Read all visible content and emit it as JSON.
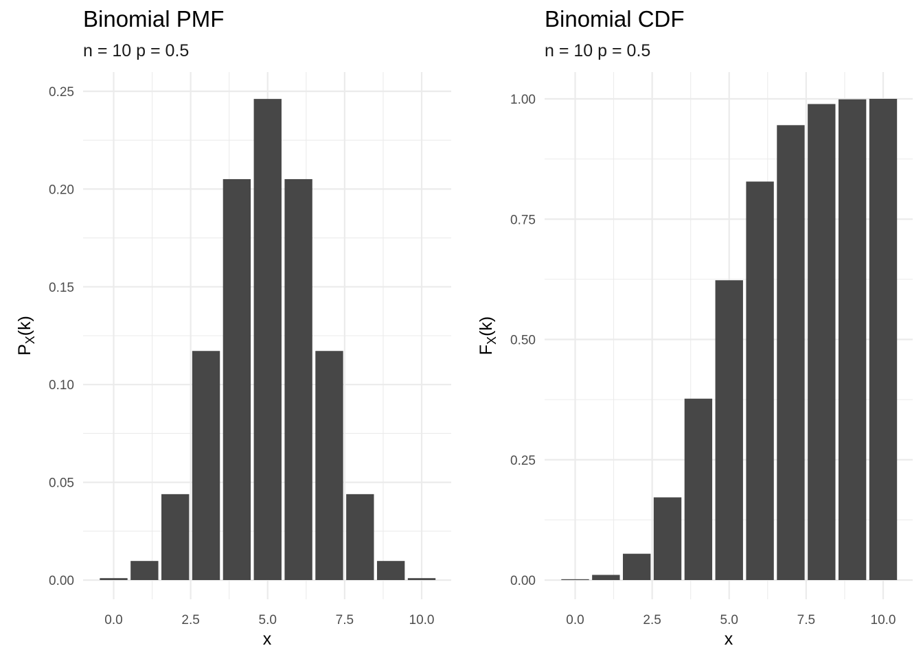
{
  "colors": {
    "bar": "#474747",
    "grid": "#ebebeb",
    "background": "#ffffff"
  },
  "chart_data": [
    {
      "type": "bar",
      "title": "Binomial PMF",
      "subtitle": "n = 10 p = 0.5",
      "xlabel": "x",
      "ylabel_main": "P",
      "ylabel_sub": "X",
      "ylabel_tail": "(k)",
      "x": [
        0,
        1,
        2,
        3,
        4,
        5,
        6,
        7,
        8,
        9,
        10
      ],
      "values": [
        0.000977,
        0.009766,
        0.043945,
        0.117188,
        0.205078,
        0.246094,
        0.205078,
        0.117188,
        0.043945,
        0.009766,
        0.000977
      ],
      "xlim": [
        -0.5,
        10.5
      ],
      "ylim": [
        0,
        0.25
      ],
      "xticks": [
        0,
        2.5,
        5,
        7.5,
        10
      ],
      "xtick_labels": [
        "0.0",
        "2.5",
        "5.0",
        "7.5",
        "10.0"
      ],
      "yticks": [
        0,
        0.05,
        0.1,
        0.15,
        0.2,
        0.25
      ],
      "ytick_labels": [
        "0.00",
        "0.05",
        "0.10",
        "0.15",
        "0.20",
        "0.25"
      ],
      "grid": true,
      "legend": "none"
    },
    {
      "type": "bar",
      "title": "Binomial CDF",
      "subtitle": "n = 10 p = 0.5",
      "xlabel": "x",
      "ylabel_main": "F",
      "ylabel_sub": "X",
      "ylabel_tail": "(k)",
      "x": [
        0,
        1,
        2,
        3,
        4,
        5,
        6,
        7,
        8,
        9,
        10
      ],
      "values": [
        0.000977,
        0.010742,
        0.054688,
        0.171875,
        0.376953,
        0.623047,
        0.828125,
        0.945313,
        0.989258,
        0.999023,
        1.0
      ],
      "xlim": [
        -0.5,
        10.5
      ],
      "ylim": [
        0,
        1
      ],
      "xticks": [
        0,
        2.5,
        5,
        7.5,
        10
      ],
      "xtick_labels": [
        "0.0",
        "2.5",
        "5.0",
        "7.5",
        "10.0"
      ],
      "yticks": [
        0,
        0.25,
        0.5,
        0.75,
        1
      ],
      "ytick_labels": [
        "0.00",
        "0.25",
        "0.50",
        "0.75",
        "1.00"
      ],
      "grid": true,
      "legend": "none"
    }
  ]
}
